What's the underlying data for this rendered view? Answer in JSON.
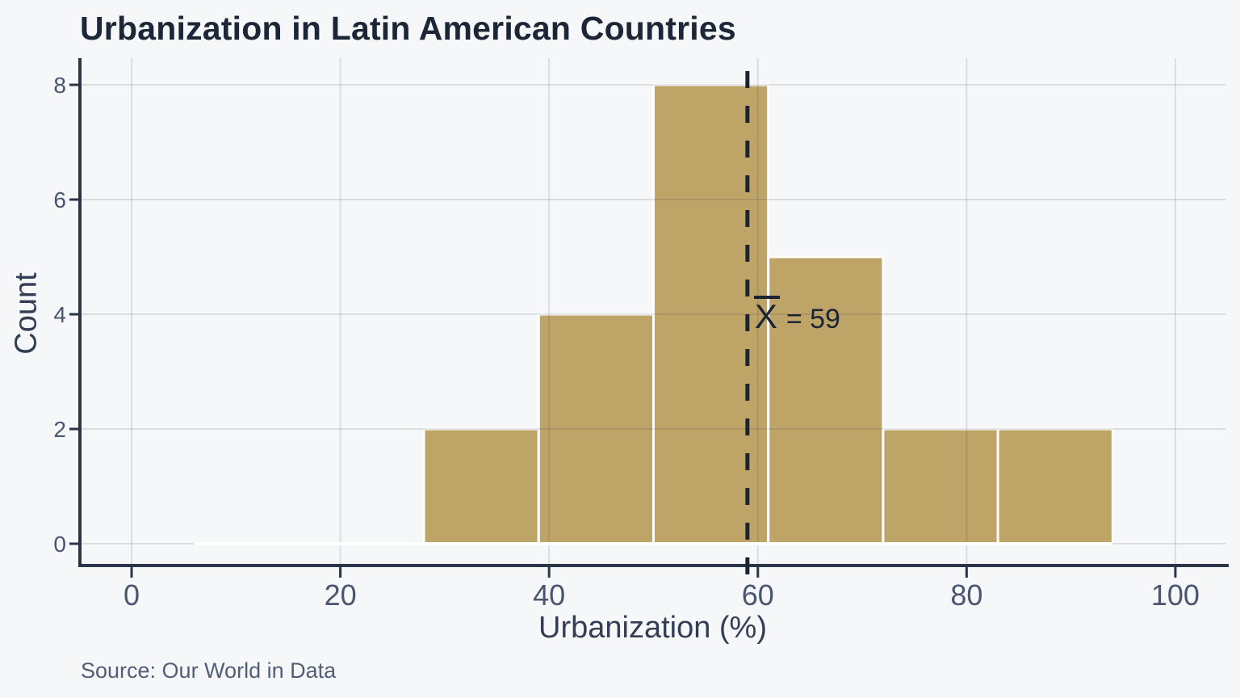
{
  "chart_data": {
    "type": "bar",
    "subtype": "histogram",
    "title": "Urbanization in Latin American Countries",
    "xlabel": "Urbanization (%)",
    "ylabel": "Count",
    "source": "Source: Our World in Data",
    "bin_edges": [
      28,
      39,
      50,
      61,
      72,
      83,
      94
    ],
    "counts": [
      2,
      4,
      8,
      5,
      2,
      2
    ],
    "x_ticks": [
      0,
      20,
      40,
      60,
      80,
      100
    ],
    "y_ticks": [
      0,
      2,
      4,
      6,
      8
    ],
    "xlim": [
      -4.95,
      104.8
    ],
    "ylim": [
      -0.38,
      8.465
    ],
    "grid": true,
    "legend": false,
    "mean_line": {
      "value": 59,
      "style": "dashed",
      "label_symbol": "X",
      "label_rest": "= 59"
    },
    "baseline_segment": {
      "from": 6,
      "to": 94
    },
    "colors": {
      "background": "#f5f7f9",
      "bar_fill": "#bfa468",
      "bar_border": "#ffffff",
      "gridline": "rgba(43,52,69,0.13)",
      "axis_line": "#2b3547",
      "tick_label": "#4a5670",
      "axis_title": "#333e55",
      "title": "#1c2636",
      "mean_line": "#1b2433",
      "source": "#515e76"
    }
  }
}
